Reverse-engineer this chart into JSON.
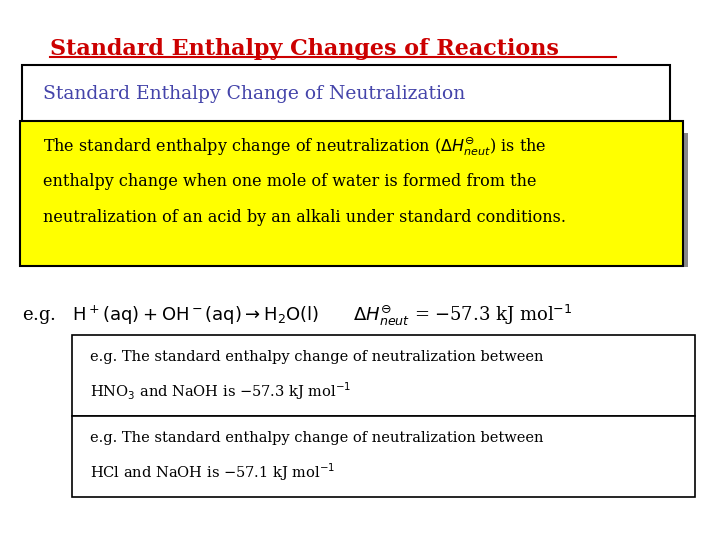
{
  "title": "Standard Enthalpy Changes of Reactions",
  "title_color": "#cc0000",
  "subtitle": "Standard Enthalpy Change of Neutralization",
  "subtitle_color": "#4444aa",
  "bg_color": "#ffffff",
  "yellow_bg": "#ffff00",
  "shadow_color": "#888888"
}
